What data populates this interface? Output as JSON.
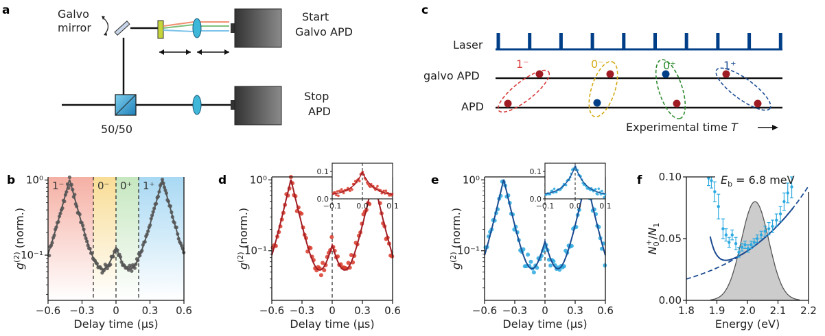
{
  "panels": {
    "a": {
      "letter": "a",
      "galvo_label_1": "Galvo",
      "galvo_label_2": "mirror",
      "start_label_1": "Start",
      "start_label_2": "Galvo APD",
      "stop_label_1": "Stop",
      "stop_label_2": "APD",
      "splitter_label": "50/50"
    },
    "b": {
      "letter": "b"
    },
    "c": {
      "letter": "c",
      "rows": [
        "Laser",
        "galvo APD",
        "APD"
      ],
      "experimental_time": "Experimental time",
      "T": "T",
      "groups": [
        {
          "label": "1⁻",
          "color": "#d93a3a"
        },
        {
          "label": "0⁻",
          "color": "#d4aa14"
        },
        {
          "label": "0⁺",
          "color": "#2e8b2e"
        },
        {
          "label": "1⁺",
          "color": "#1e4e96"
        }
      ]
    },
    "d": {
      "letter": "d"
    },
    "e": {
      "letter": "e"
    },
    "f": {
      "letter": "f"
    }
  },
  "colors": {
    "dark_red": "#a01c24",
    "navy": "#003f88",
    "gray_data": "#555555",
    "red_data": "#d83a2a",
    "cyan_data": "#2ba9e0",
    "fit_blue": "#1a4a90",
    "gauss_fill": "#cccccc"
  },
  "chart_data": [
    {
      "panel": "b",
      "type": "line",
      "xlabel": "Delay time (µs)",
      "ylabel": "g(2) (norm.)",
      "xlim": [
        -0.6,
        0.6
      ],
      "ylim": [
        0.025,
        1.1
      ],
      "yscale": "log",
      "xticks": [
        "−0.6",
        "−0.3",
        "0",
        "0.3",
        "0.6"
      ],
      "yticks": [
        "10⁰",
        "10⁻¹"
      ],
      "regions": [
        {
          "label": "1⁻",
          "range": [
            -0.6,
            -0.2
          ],
          "color": "#f4a79a"
        },
        {
          "label": "0⁻",
          "range": [
            -0.2,
            0.0
          ],
          "color": "#f8d98a"
        },
        {
          "label": "0⁺",
          "range": [
            0.0,
            0.2
          ],
          "color": "#bfe4b8"
        },
        {
          "label": "1⁺",
          "range": [
            0.2,
            0.6
          ],
          "color": "#9fd4f2"
        }
      ],
      "series": [
        {
          "color": "#555555",
          "peaks": [
            [
              -0.41,
              1.0
            ],
            [
              0.0,
              0.095
            ],
            [
              0.41,
              1.0
            ]
          ],
          "tau": 0.075,
          "floor": 0.024
        }
      ]
    },
    {
      "panel": "d",
      "type": "scatter",
      "xlabel": "Delay time (µs)",
      "ylabel": "g(2) (norm.)",
      "xlim": [
        -0.6,
        0.6
      ],
      "ylim": [
        0.02,
        1.1
      ],
      "yscale": "log",
      "xticks": [
        "−0.6",
        "−0.3",
        "0",
        "0.3",
        "0.6"
      ],
      "yticks": [
        "10⁰",
        "10⁻¹"
      ],
      "series": [
        {
          "color": "#d83a2a",
          "fit_color": "#a01c24",
          "peaks": [
            [
              -0.41,
              1.0
            ],
            [
              0.0,
              0.095
            ],
            [
              0.41,
              1.0
            ]
          ],
          "tau": 0.07,
          "floor": 0.02
        }
      ],
      "inset": {
        "xlim": [
          -0.1,
          0.1
        ],
        "ylim": [
          0,
          0.13
        ],
        "xticks": [
          "−0.1",
          "0.0",
          "0.1"
        ],
        "yticks": [
          "0.0",
          "0.1"
        ],
        "peak": 0.098
      }
    },
    {
      "panel": "e",
      "type": "scatter",
      "xlabel": "Delay time (µs)",
      "ylabel": "g(2) (norm.)",
      "xlim": [
        -0.6,
        0.6
      ],
      "ylim": [
        0.02,
        1.1
      ],
      "yscale": "log",
      "xticks": [
        "−0.6",
        "−0.3",
        "0",
        "0.3",
        "0.6"
      ],
      "yticks": [
        "10⁰",
        "10⁻¹"
      ],
      "series": [
        {
          "color": "#2ba9e0",
          "fit_color": "#1a4a90",
          "peaks": [
            [
              -0.41,
              1.0
            ],
            [
              0.0,
              0.11
            ],
            [
              0.41,
              1.0
            ]
          ],
          "tau": 0.07,
          "floor": 0.02
        }
      ],
      "inset": {
        "xlim": [
          -0.1,
          0.1
        ],
        "ylim": [
          0,
          0.13
        ],
        "xticks": [
          "−0.1",
          "0.0",
          "0.1"
        ],
        "yticks": [
          "0.0",
          "0.1"
        ],
        "peak": 0.12
      }
    },
    {
      "panel": "f",
      "type": "line",
      "xlabel": "Energy (eV)",
      "ylabel": "N0+/N1",
      "xlim": [
        1.8,
        2.2
      ],
      "ylim": [
        0.0,
        0.1
      ],
      "xticks": [
        "1.8",
        "1.9",
        "2.0",
        "2.1",
        "2.2"
      ],
      "yticks": [
        "0.00",
        "0.05",
        "0.10"
      ],
      "annotation": "Eb = 6.8 meV",
      "gaussian": {
        "center": 2.025,
        "sigma": 0.045,
        "peak": 0.08
      },
      "data_points": [
        {
          "x": 1.873,
          "y": 0.099,
          "err": 0.006
        },
        {
          "x": 1.882,
          "y": 0.097,
          "err": 0.006
        },
        {
          "x": 1.893,
          "y": 0.088,
          "err": 0.008
        },
        {
          "x": 1.905,
          "y": 0.076,
          "err": 0.01
        },
        {
          "x": 1.92,
          "y": 0.058,
          "err": 0.008
        },
        {
          "x": 1.93,
          "y": 0.053,
          "err": 0.005
        },
        {
          "x": 1.94,
          "y": 0.047,
          "err": 0.004
        },
        {
          "x": 1.95,
          "y": 0.053,
          "err": 0.004
        },
        {
          "x": 1.962,
          "y": 0.046,
          "err": 0.005
        },
        {
          "x": 1.972,
          "y": 0.039,
          "err": 0.004
        },
        {
          "x": 1.982,
          "y": 0.043,
          "err": 0.003
        },
        {
          "x": 1.992,
          "y": 0.045,
          "err": 0.003
        },
        {
          "x": 2.002,
          "y": 0.042,
          "err": 0.003
        },
        {
          "x": 2.012,
          "y": 0.045,
          "err": 0.003
        },
        {
          "x": 2.022,
          "y": 0.047,
          "err": 0.003
        },
        {
          "x": 2.032,
          "y": 0.05,
          "err": 0.003
        },
        {
          "x": 2.045,
          "y": 0.053,
          "err": 0.003
        },
        {
          "x": 2.058,
          "y": 0.056,
          "err": 0.004
        },
        {
          "x": 2.07,
          "y": 0.058,
          "err": 0.005
        },
        {
          "x": 2.082,
          "y": 0.06,
          "err": 0.005
        },
        {
          "x": 2.095,
          "y": 0.065,
          "err": 0.005
        },
        {
          "x": 2.108,
          "y": 0.07,
          "err": 0.006
        },
        {
          "x": 2.12,
          "y": 0.08,
          "err": 0.007
        },
        {
          "x": 2.132,
          "y": 0.087,
          "err": 0.008
        },
        {
          "x": 2.145,
          "y": 0.092,
          "err": 0.009
        }
      ]
    }
  ]
}
